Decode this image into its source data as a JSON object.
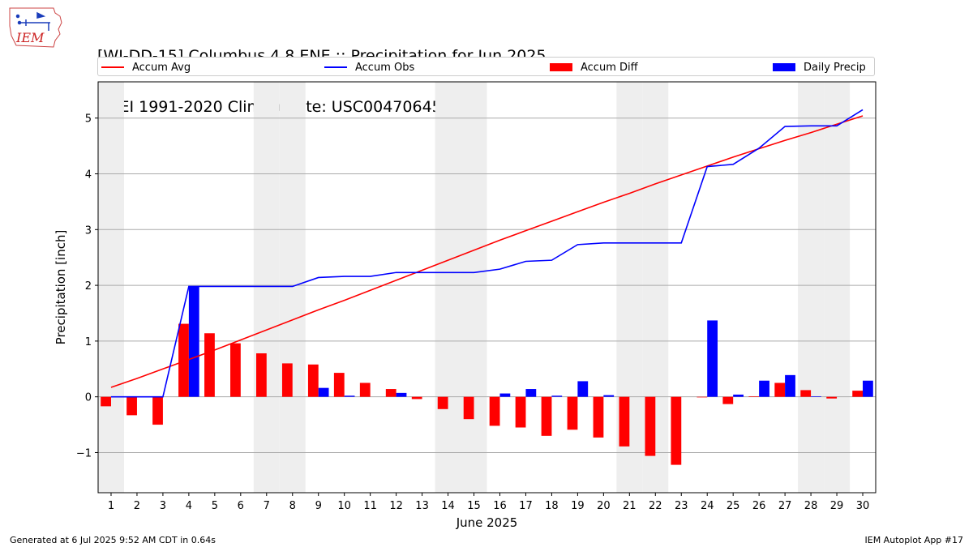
{
  "header": {
    "title_line1": "[WI-DD-15] Columbus 4.8 ENE :: Precipitation for Jun 2025",
    "title_line2": "NCEI 1991-2020 Climate Site: USC00470645"
  },
  "logo": {
    "text": "IEM",
    "icon": "iowa-state-outline-logo"
  },
  "legend": {
    "accum_avg": "Accum Avg",
    "accum_obs": "Accum Obs",
    "accum_diff": "Accum Diff",
    "daily_precip": "Daily Precip"
  },
  "footer": {
    "generated": "Generated at 6 Jul 2025 9:52 AM CDT in 0.64s",
    "app": "IEM Autoplot App #17"
  },
  "colors": {
    "accum_avg": "#ff0000",
    "accum_obs": "#0000ff",
    "accum_diff": "#ff0000",
    "daily_precip": "#0000ff",
    "weekend_shade": "#eeeeee",
    "grid": "#aaaaaa"
  },
  "chart_data": {
    "type": "bar",
    "xlabel": "June 2025",
    "ylabel": "Precipitation [inch]",
    "ylim": [
      -1.72,
      5.65
    ],
    "yticks": [
      -1,
      0,
      1,
      2,
      3,
      4,
      5
    ],
    "ytick_labels": [
      "−1",
      "0",
      "1",
      "2",
      "3",
      "4",
      "5"
    ],
    "grid": "horizontal",
    "legend_position": "top",
    "shaded_days": [
      1,
      7,
      8,
      14,
      15,
      21,
      22,
      28,
      29
    ],
    "days": [
      1,
      2,
      3,
      4,
      5,
      6,
      7,
      8,
      9,
      10,
      11,
      12,
      13,
      14,
      15,
      16,
      17,
      18,
      19,
      20,
      21,
      22,
      23,
      24,
      25,
      26,
      27,
      28,
      29,
      30
    ],
    "series": [
      {
        "name": "Accum Avg",
        "kind": "line",
        "values": [
          0.17,
          0.33,
          0.5,
          0.67,
          0.84,
          1.02,
          1.2,
          1.38,
          1.56,
          1.73,
          1.91,
          2.09,
          2.27,
          2.45,
          2.63,
          2.81,
          2.98,
          3.15,
          3.32,
          3.49,
          3.65,
          3.82,
          3.98,
          4.14,
          4.3,
          4.45,
          4.6,
          4.74,
          4.89,
          5.04
        ]
      },
      {
        "name": "Accum Obs",
        "kind": "line",
        "values": [
          0.0,
          0.0,
          0.0,
          1.98,
          1.98,
          1.98,
          1.98,
          1.98,
          2.14,
          2.16,
          2.16,
          2.23,
          2.23,
          2.23,
          2.23,
          2.29,
          2.43,
          2.45,
          2.73,
          2.76,
          2.76,
          2.76,
          2.76,
          4.13,
          4.17,
          4.46,
          4.85,
          4.86,
          4.86,
          5.15
        ]
      },
      {
        "name": "Accum Diff",
        "kind": "bar",
        "values": [
          -0.17,
          -0.33,
          -0.5,
          1.31,
          1.14,
          0.96,
          0.78,
          0.6,
          0.58,
          0.43,
          0.25,
          0.14,
          -0.04,
          -0.22,
          -0.4,
          -0.52,
          -0.55,
          -0.7,
          -0.59,
          -0.73,
          -0.89,
          -1.06,
          -1.22,
          -0.01,
          -0.13,
          0.01,
          0.25,
          0.12,
          -0.03,
          0.11
        ]
      },
      {
        "name": "Daily Precip",
        "kind": "bar",
        "values": [
          0.0,
          0.0,
          0.0,
          1.98,
          0.0,
          0.0,
          0.0,
          0.0,
          0.16,
          0.02,
          0.0,
          0.07,
          0.0,
          0.0,
          0.0,
          0.06,
          0.14,
          0.02,
          0.28,
          0.03,
          0.0,
          0.0,
          0.0,
          1.37,
          0.04,
          0.29,
          0.39,
          0.01,
          0.0,
          0.29
        ]
      }
    ]
  }
}
